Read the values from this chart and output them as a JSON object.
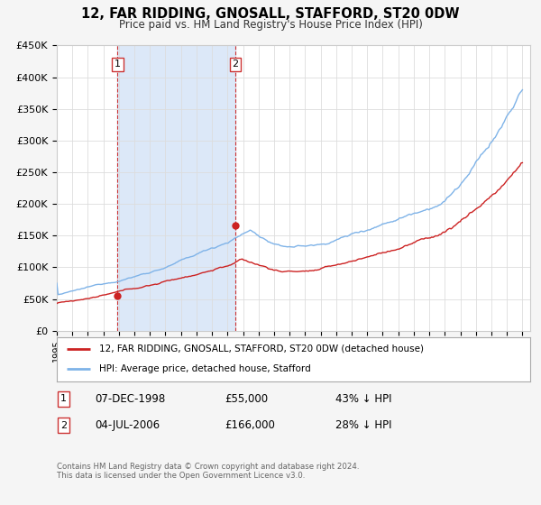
{
  "title": "12, FAR RIDDING, GNOSALL, STAFFORD, ST20 0DW",
  "subtitle": "Price paid vs. HM Land Registry's House Price Index (HPI)",
  "bg_color": "#f5f5f5",
  "plot_bg_color": "#ffffff",
  "hpi_color": "#7fb3e8",
  "price_color": "#cc2222",
  "highlight_bg_color": "#dce8f8",
  "vline_color": "#cc3333",
  "ylim": [
    0,
    450000
  ],
  "xlim_start": 1995.0,
  "xlim_end": 2025.5,
  "ytick_labels": [
    "£0",
    "£50K",
    "£100K",
    "£150K",
    "£200K",
    "£250K",
    "£300K",
    "£350K",
    "£400K",
    "£450K"
  ],
  "ytick_values": [
    0,
    50000,
    100000,
    150000,
    200000,
    250000,
    300000,
    350000,
    400000,
    450000
  ],
  "sale1_date": 1998.92,
  "sale1_price": 55000,
  "sale2_date": 2006.5,
  "sale2_price": 166000,
  "legend_line1": "12, FAR RIDDING, GNOSALL, STAFFORD, ST20 0DW (detached house)",
  "legend_line2": "HPI: Average price, detached house, Stafford",
  "table_row1": [
    "1",
    "07-DEC-1998",
    "£55,000",
    "43% ↓ HPI"
  ],
  "table_row2": [
    "2",
    "04-JUL-2006",
    "£166,000",
    "28% ↓ HPI"
  ],
  "footnote1": "Contains HM Land Registry data © Crown copyright and database right 2024.",
  "footnote2": "This data is licensed under the Open Government Licence v3.0."
}
